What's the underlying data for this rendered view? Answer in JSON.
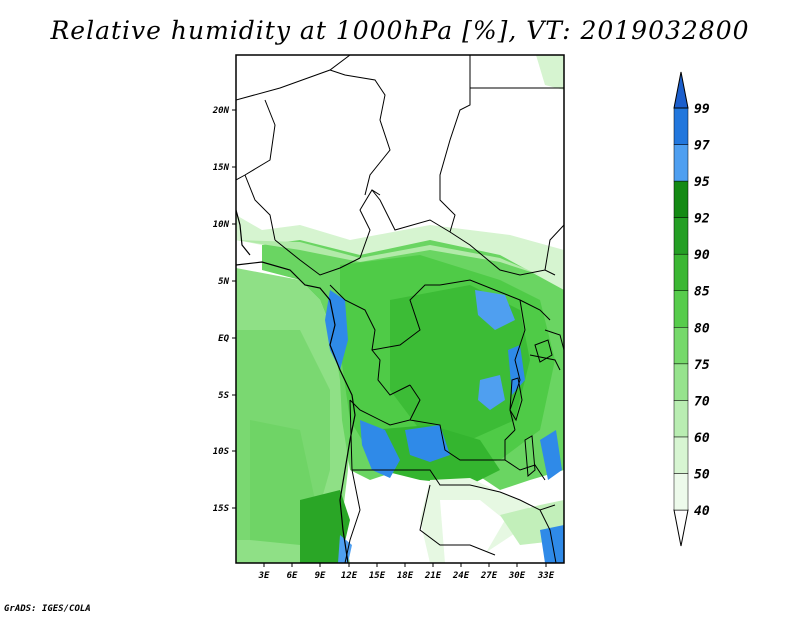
{
  "title": "Relative humidity at 1000hPa [%], VT: 2019032800",
  "credit": "GrADS: IGES/COLA",
  "map": {
    "lon_labels": [
      "3E",
      "6E",
      "9E",
      "12E",
      "15E",
      "18E",
      "21E",
      "24E",
      "27E",
      "30E",
      "33E"
    ],
    "lat_labels": [
      "20N",
      "15N",
      "10N",
      "5N",
      "EQ",
      "5S",
      "10S",
      "15S"
    ]
  },
  "colorbar": {
    "levels": [
      "40",
      "50",
      "60",
      "70",
      "75",
      "80",
      "85",
      "90",
      "92",
      "95",
      "97",
      "99"
    ],
    "colors": [
      "#ffffff",
      "#edfaeb",
      "#d7f5d2",
      "#b9edb2",
      "#96e38d",
      "#76d96b",
      "#57cc4c",
      "#3bb733",
      "#249f24",
      "#148a14",
      "#4f9ff0",
      "#2277dd",
      "#1c5fcc"
    ]
  }
}
